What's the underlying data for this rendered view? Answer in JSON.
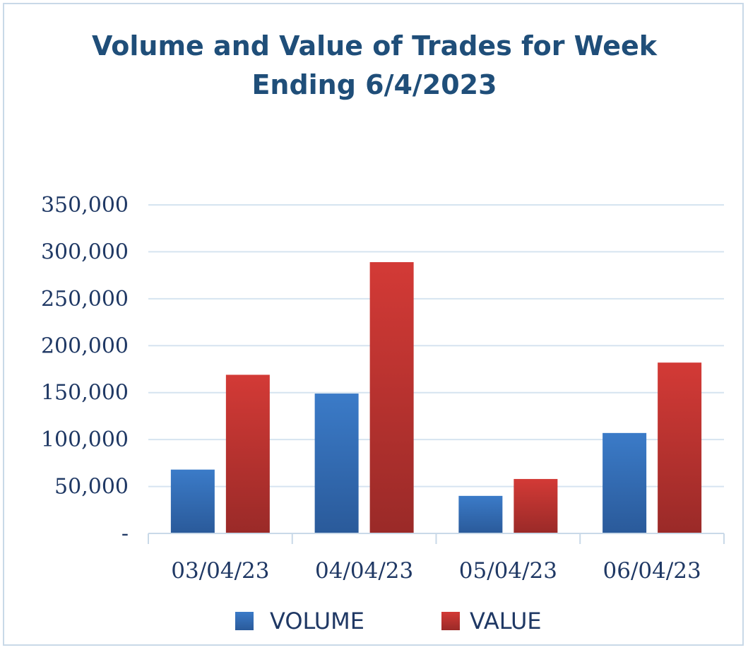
{
  "chart_data": {
    "type": "bar",
    "title_lines": [
      "Volume and Value of Trades for Week",
      "Ending 6/4/2023"
    ],
    "categories": [
      "03/04/23",
      "04/04/23",
      "05/04/23",
      "06/04/23"
    ],
    "series": [
      {
        "name": "VOLUME",
        "values": [
          68000,
          149000,
          40000,
          107000
        ],
        "color": "#3b7bc8",
        "color_dark": "#2a5a9a"
      },
      {
        "name": "VALUE",
        "values": [
          169000,
          289000,
          58000,
          182000
        ],
        "color": "#d33a36",
        "color_dark": "#9a2a28"
      }
    ],
    "ylim": [
      0,
      350000
    ],
    "y_ticks": [
      {
        "value": 0,
        "label": "-"
      },
      {
        "value": 50000,
        "label": "50,000"
      },
      {
        "value": 100000,
        "label": "100,000"
      },
      {
        "value": 150000,
        "label": "150,000"
      },
      {
        "value": 200000,
        "label": "200,000"
      },
      {
        "value": 250000,
        "label": "250,000"
      },
      {
        "value": 300000,
        "label": "300,000"
      },
      {
        "value": 350000,
        "label": "350,000"
      }
    ],
    "grid": true,
    "legend_position": "bottom",
    "gridline_color": "#d6e4f0",
    "axis_color": "#c9d9e8"
  }
}
